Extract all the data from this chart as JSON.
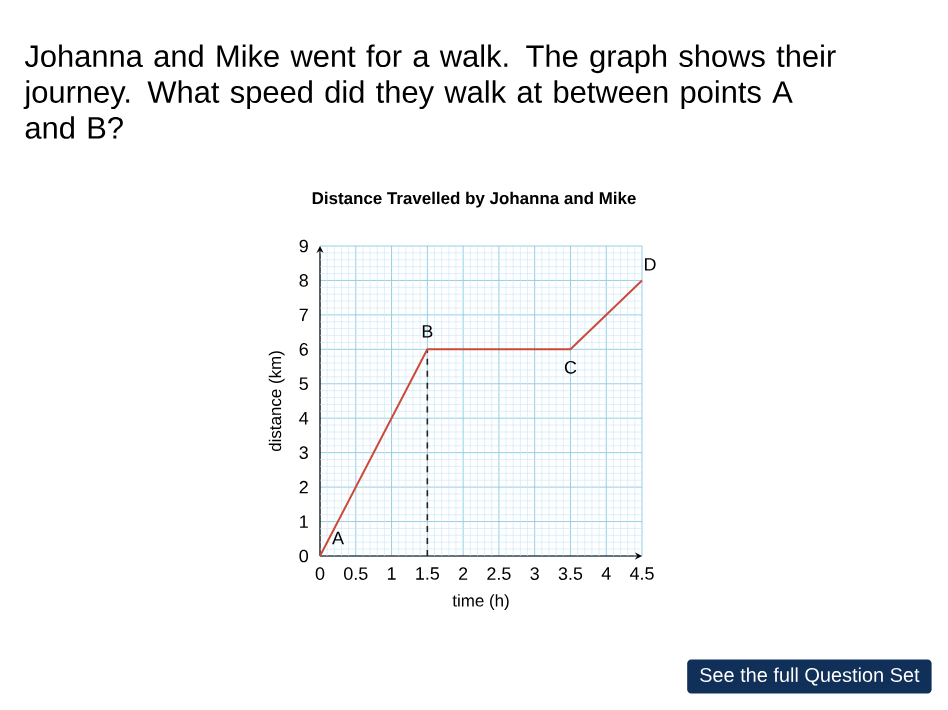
{
  "chart_data": {
    "type": "line",
    "title": "Johanna and Mike went for a walk. The graph shows their journey. What speed did they walk at between points A and B?",
    "subtitle": "Distance Travelled by Johanna and Mike",
    "xlabel": "time (h)",
    "ylabel": "distance (km)",
    "x": [
      0,
      1.5,
      3.5,
      4.5
    ],
    "series": [
      {
        "color": "#cc4a3a",
        "values": [
          0,
          6,
          6,
          8
        ]
      }
    ],
    "xlim": [
      0,
      4.5
    ],
    "ylim": [
      0,
      9
    ],
    "xticks": [
      0,
      0.5,
      1,
      1.5,
      2,
      2.5,
      3,
      3.5,
      4,
      4.5,
      {
        "value": 0.1,
        "label": null
      },
      {
        "value": 0.2,
        "label": null
      },
      {
        "value": 0.3,
        "label": null
      },
      {
        "value": 0.4,
        "label": null
      },
      {
        "value": 0.6,
        "label": null
      },
      {
        "value": 0.7,
        "label": null
      },
      {
        "value": 0.8,
        "label": null
      },
      {
        "value": 0.9,
        "label": null
      },
      {
        "value": 1.1,
        "label": null
      },
      {
        "value": 1.2,
        "label": null
      },
      {
        "value": 1.3,
        "label": null
      },
      {
        "value": 1.4,
        "label": null
      },
      {
        "value": 1.6,
        "label": null
      },
      {
        "value": 1.7,
        "label": null
      },
      {
        "value": 1.8,
        "label": null
      },
      {
        "value": 1.9,
        "label": null
      },
      {
        "value": 2.1,
        "label": null
      },
      {
        "value": 2.2,
        "label": null
      },
      {
        "value": 2.3,
        "label": null
      },
      {
        "value": 2.4,
        "label": null
      },
      {
        "value": 2.6,
        "label": null
      },
      {
        "value": 2.7,
        "label": null
      },
      {
        "value": 2.8,
        "label": null
      },
      {
        "value": 2.9,
        "label": null
      },
      {
        "value": 3.1,
        "label": null
      },
      {
        "value": 3.2,
        "label": null
      },
      {
        "value": 3.3,
        "label": null
      },
      {
        "value": 3.4,
        "label": null
      },
      {
        "value": 3.6,
        "label": null
      },
      {
        "value": 3.7,
        "label": null
      },
      {
        "value": 3.8,
        "label": null
      },
      {
        "value": 3.9,
        "label": null
      },
      {
        "value": 4.1,
        "label": null
      },
      {
        "value": 4.2,
        "label": null
      },
      {
        "value": 4.3,
        "label": null
      },
      {
        "value": 4.4,
        "label": null
      }
    ],
    "yticks": [
      0,
      1,
      2,
      3,
      4,
      5,
      6,
      7,
      8,
      9,
      {
        "value": 0.2,
        "label": null
      },
      {
        "value": 0.4,
        "label": null
      },
      {
        "value": 0.6,
        "label": null
      },
      {
        "value": 0.8,
        "label": null
      },
      {
        "value": 1.2,
        "label": null
      },
      {
        "value": 1.4,
        "label": null
      },
      {
        "value": 1.6,
        "label": null
      },
      {
        "value": 1.8,
        "label": null
      },
      {
        "value": 2.2,
        "label": null
      },
      {
        "value": 2.4,
        "label": null
      },
      {
        "value": 2.6,
        "label": null
      },
      {
        "value": 2.8,
        "label": null
      },
      {
        "value": 3.2,
        "label": null
      },
      {
        "value": 3.4,
        "label": null
      },
      {
        "value": 3.6,
        "label": null
      },
      {
        "value": 3.8,
        "label": null
      },
      {
        "value": 4.2,
        "label": null
      },
      {
        "value": 4.4,
        "label": null
      },
      {
        "value": 4.6,
        "label": null
      },
      {
        "value": 4.8,
        "label": null
      },
      {
        "value": 5.2,
        "label": null
      },
      {
        "value": 5.4,
        "label": null
      },
      {
        "value": 5.6,
        "label": null
      },
      {
        "value": 5.8,
        "label": null
      },
      {
        "value": 6.2,
        "label": null
      },
      {
        "value": 6.4,
        "label": null
      },
      {
        "value": 6.6,
        "label": null
      },
      {
        "value": 6.8,
        "label": null
      },
      {
        "value": 7.2,
        "label": null
      },
      {
        "value": 7.4,
        "label": null
      },
      {
        "value": 7.6,
        "label": null
      },
      {
        "value": 7.8,
        "label": null
      },
      {
        "value": 8.2,
        "label": null
      },
      {
        "value": 8.4,
        "label": null
      },
      {
        "value": 8.6,
        "label": null
      },
      {
        "value": 8.8,
        "label": null
      }
    ],
    "grid": true,
    "marker": "none",
    "line_style": "solid",
    "ref_lines": [
      {
        "axis": "x",
        "value": 1.5,
        "color": "#222222",
        "line_style": "dashed"
      }
    ],
    "annotations": [
      {
        "text": "A",
        "x": 0,
        "y": 0
      },
      {
        "text": "B",
        "x": 1.5,
        "y": 6
      },
      {
        "text": "C",
        "x": 3.5,
        "y": 6
      },
      {
        "text": "D",
        "x": 4.5,
        "y": 8
      },
      "See the full Question Set"
    ]
  }
}
